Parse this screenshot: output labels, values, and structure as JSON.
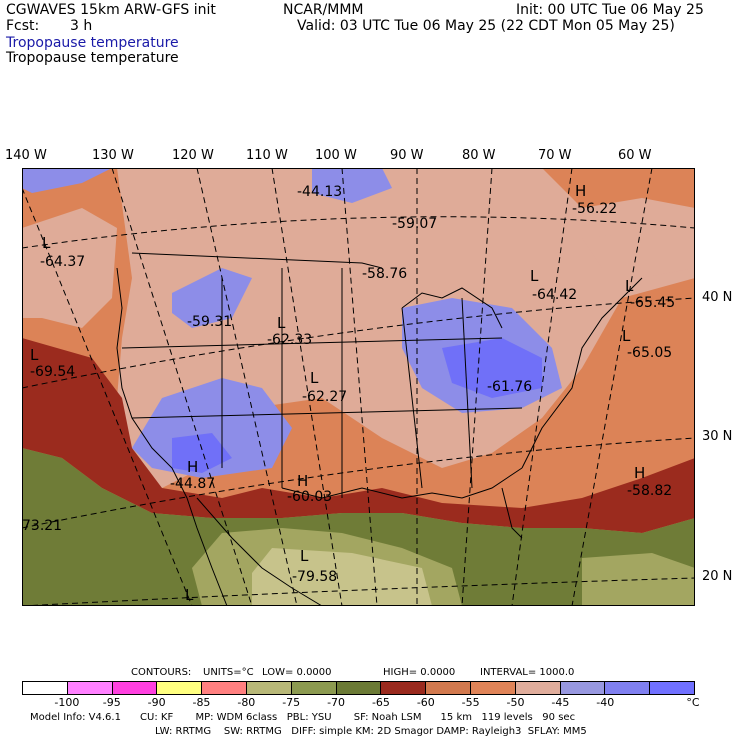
{
  "header": {
    "model_line": "CGWAVES 15km ARW-GFS init",
    "center": "NCAR/MMM",
    "init": "Init: 00 UTC Tue 06 May 25",
    "fcst_label": "Fcst:",
    "fcst_value": "3 h",
    "valid": "Valid: 03 UTC Tue 06 May 25 (22 CDT Mon 05 May 25)",
    "field_title_1": "Tropopause temperature",
    "field_title_2": "Tropopause temperature"
  },
  "lon_labels": [
    "140 W",
    "130 W",
    "120 W",
    "110 W",
    "100 W",
    "90 W",
    "80 W",
    "70 W",
    "60 W"
  ],
  "lat_labels": [
    "40 N",
    "30 N",
    "20 N"
  ],
  "annotations": [
    {
      "letter": "",
      "value": "-44.13"
    },
    {
      "letter": "",
      "value": "-59.07"
    },
    {
      "letter": "H",
      "value": "-56.22"
    },
    {
      "letter": "L",
      "value": "-64.37"
    },
    {
      "letter": "",
      "value": "-58.76"
    },
    {
      "letter": "L",
      "value": "-64.42"
    },
    {
      "letter": "L",
      "value": "-65.45"
    },
    {
      "letter": "",
      "value": "-59.31"
    },
    {
      "letter": "L",
      "value": "-62.33"
    },
    {
      "letter": "L",
      "value": "-65.05"
    },
    {
      "letter": "L",
      "value": "-69.54"
    },
    {
      "letter": "L",
      "value": "-62.27"
    },
    {
      "letter": "",
      "value": "-61.76"
    },
    {
      "letter": "H",
      "value": "-44.87"
    },
    {
      "letter": "H",
      "value": "-60.03"
    },
    {
      "letter": "H",
      "value": "-58.82"
    },
    {
      "letter": "",
      "value": "73.21"
    },
    {
      "letter": "L",
      "value": "-79.58"
    },
    {
      "letter": "L",
      "value": ""
    }
  ],
  "contours": {
    "contours_label": "CONTOURS:",
    "units": "UNITS=°C",
    "low": "LOW= 0.0000",
    "high": "HIGH= 0.0000",
    "interval": "INTERVAL= 1000.0"
  },
  "colorbar": {
    "colors": [
      "#ffffff",
      "#ff80ff",
      "#ff40e0",
      "#ffff80",
      "#ff8080",
      "#b8b878",
      "#8c9a50",
      "#6b7a35",
      "#9a2a1e",
      "#d2794e",
      "#e08458",
      "#e0ad9c",
      "#9898e0",
      "#8080f0",
      "#7070ff"
    ],
    "labels": [
      "-100",
      "-95",
      "-90",
      "-85",
      "-80",
      "-75",
      "-70",
      "-65",
      "-60",
      "-55",
      "-50",
      "-45",
      "-40",
      "°C"
    ]
  },
  "footer": {
    "line1": "Model Info: V4.6.1      CU: KF       MP: WDM 6class   PBL: YSU       SF: Noah LSM      15 km   119 levels   90 sec",
    "line2": "LW: RRTMG    SW: RRTMG   DIFF: simple KM: 2D Smagor DAMP: Rayleigh3  SFLAY: MM5"
  }
}
